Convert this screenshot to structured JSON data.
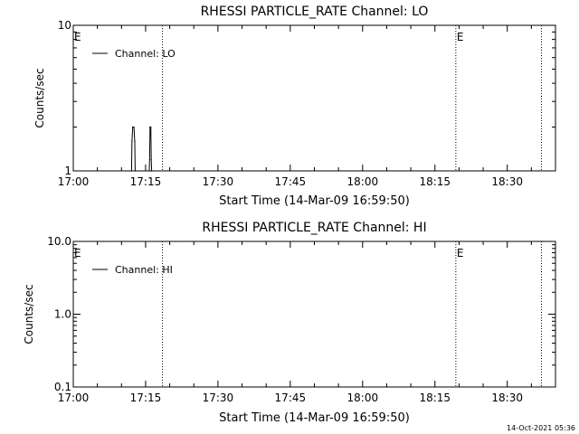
{
  "chart_data": [
    {
      "type": "line",
      "title": "RHESSI PARTICLE_RATE Channel: LO",
      "xlabel": "Start Time (14-Mar-09 16:59:50)",
      "ylabel": "Counts/sec",
      "y_scale": "log",
      "ylim": [
        1,
        10
      ],
      "y_tick_labels": [
        {
          "value": 1,
          "label": "1"
        },
        {
          "value": 10,
          "label": "10"
        }
      ],
      "xlim": [
        "17:00",
        "18:40"
      ],
      "x_tick_labels": [
        "17:00",
        "17:15",
        "17:30",
        "17:45",
        "18:00",
        "18:15",
        "18:30"
      ],
      "grid": false,
      "legend_position": "top-left",
      "series": [
        {
          "name": "Channel: LO",
          "color": "#000000",
          "points": [
            {
              "x": "17:12:05",
              "y": 1
            },
            {
              "x": "17:12:10",
              "y": 1.6
            },
            {
              "x": "17:12:20",
              "y": 2
            },
            {
              "x": "17:12:35",
              "y": 2
            },
            {
              "x": "17:12:45",
              "y": 1.6
            },
            {
              "x": "17:12:50",
              "y": 1
            },
            {
              "x": "17:15:45",
              "y": 1
            },
            {
              "x": "17:15:50",
              "y": 1.2
            },
            {
              "x": "17:15:55",
              "y": 2
            },
            {
              "x": "17:16:05",
              "y": 2
            },
            {
              "x": "17:16:10",
              "y": 1.2
            },
            {
              "x": "17:16:15",
              "y": 1
            }
          ]
        }
      ],
      "markers": [
        {
          "x": "17:18:30",
          "label": ""
        },
        {
          "x": "18:19:20",
          "label": "E"
        },
        {
          "x": "18:37:05",
          "label": ""
        },
        {
          "x": "17:00",
          "label": "E"
        }
      ]
    },
    {
      "type": "line",
      "title": "RHESSI PARTICLE_RATE Channel: HI",
      "xlabel": "Start Time (14-Mar-09 16:59:50)",
      "ylabel": "Counts/sec",
      "y_scale": "log",
      "ylim": [
        0.1,
        10
      ],
      "y_tick_labels": [
        {
          "value": 0.1,
          "label": "0.1"
        },
        {
          "value": 1,
          "label": "1.0"
        },
        {
          "value": 10,
          "label": "10.0"
        }
      ],
      "xlim": [
        "17:00",
        "18:40"
      ],
      "x_tick_labels": [
        "17:00",
        "17:15",
        "17:30",
        "17:45",
        "18:00",
        "18:15",
        "18:30"
      ],
      "grid": false,
      "legend_position": "top-left",
      "series": [
        {
          "name": "Channel: HI",
          "color": "#000000",
          "points": []
        }
      ],
      "markers": [
        {
          "x": "17:18:30",
          "label": ""
        },
        {
          "x": "18:19:20",
          "label": "E"
        },
        {
          "x": "18:37:05",
          "label": ""
        },
        {
          "x": "17:00",
          "label": "E"
        }
      ]
    }
  ],
  "footer": {
    "timestamp": "14-Oct-2021 05:36"
  }
}
